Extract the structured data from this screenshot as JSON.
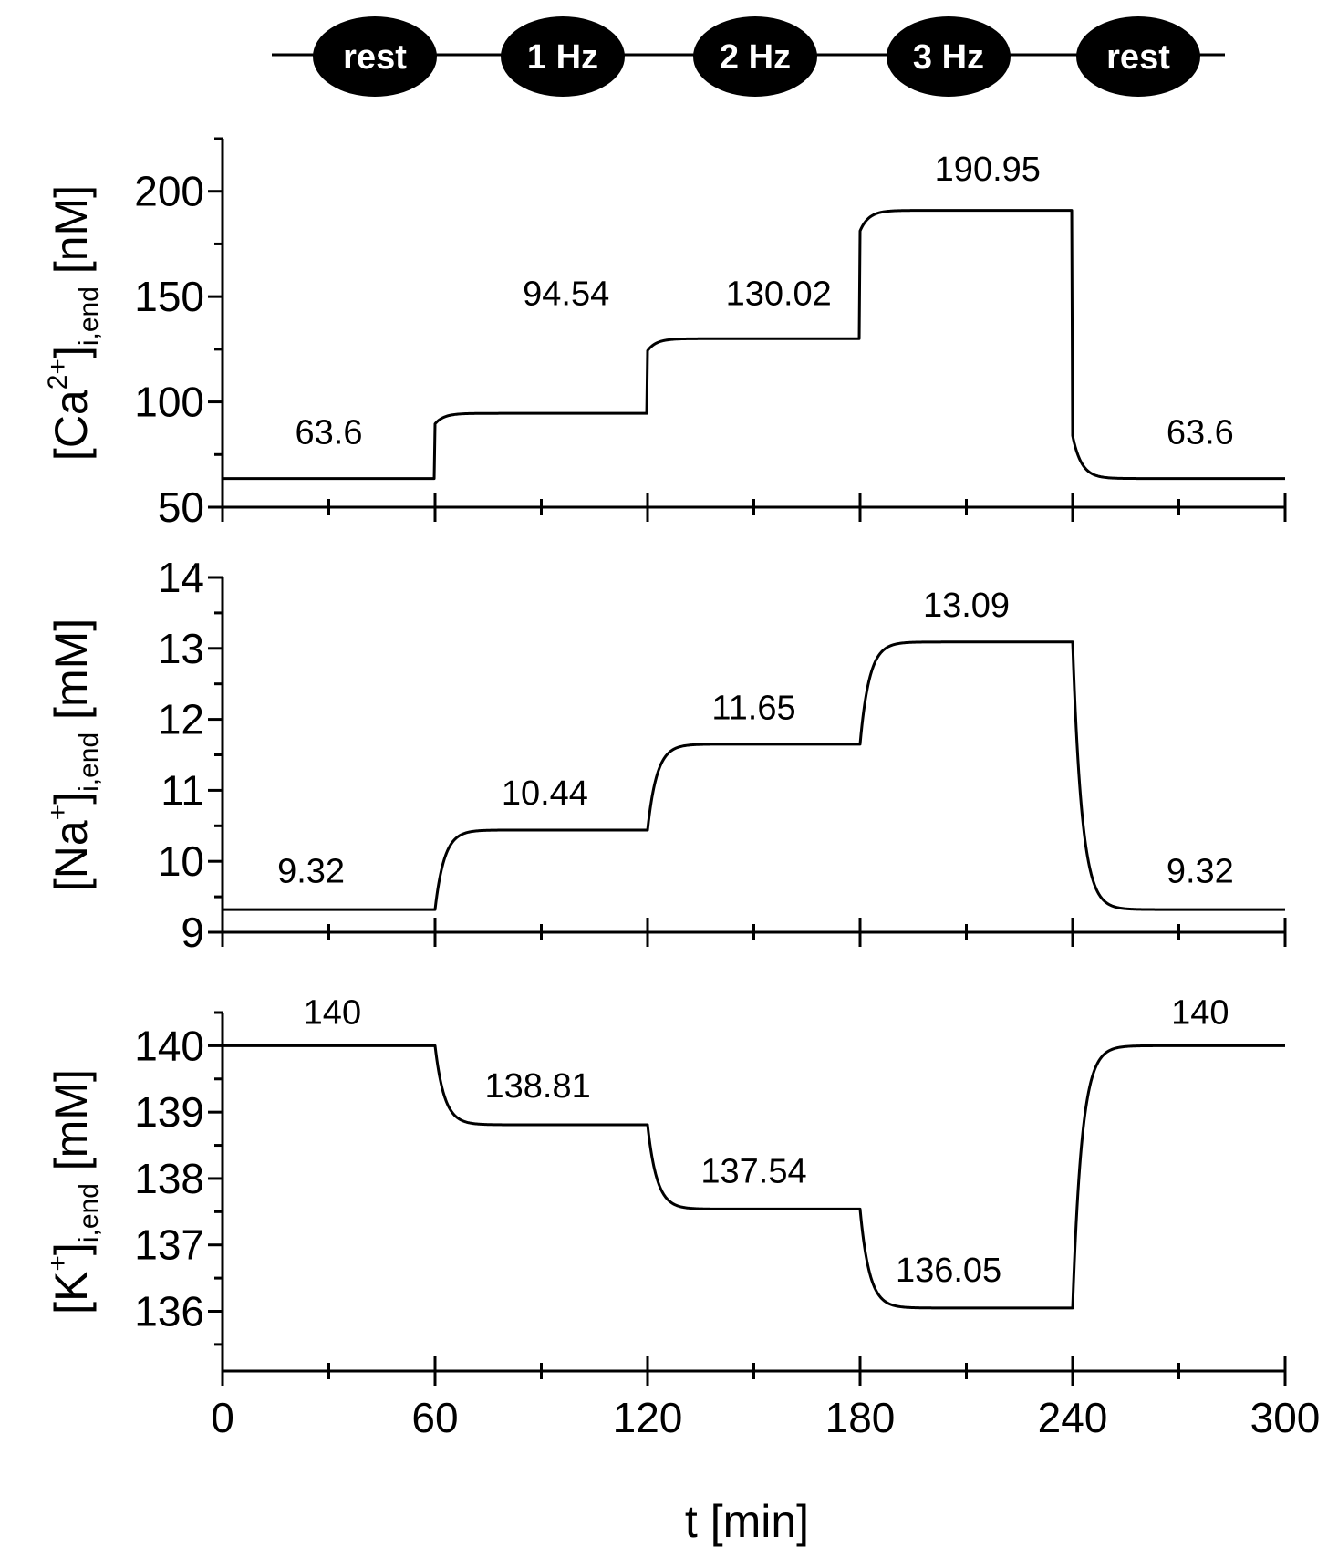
{
  "protocol": {
    "stages": [
      "rest",
      "1 Hz",
      "2 Hz",
      "3 Hz",
      "rest"
    ]
  },
  "x_axis": {
    "label": "t [min]",
    "range": [
      0,
      300
    ],
    "major_ticks": [
      0,
      60,
      120,
      180,
      240,
      300
    ],
    "tick_labels": [
      "0",
      "60",
      "120",
      "180",
      "240",
      "300"
    ],
    "minor_tick_step": 30
  },
  "chart_data": [
    {
      "type": "line",
      "ylabel": {
        "base": "[Ca",
        "sup": "2+",
        "mid": "]",
        "sub": "i,end",
        "unit": " [nM]"
      },
      "ylim": [
        50,
        225
      ],
      "yticks": [
        50,
        100,
        150,
        200
      ],
      "ytick_labels": [
        "50",
        "100",
        "150",
        "200"
      ],
      "yminor_step": 25,
      "x_breaks": [
        0,
        60,
        120,
        180,
        240,
        300
      ],
      "levels": [
        63.6,
        94.54,
        130.02,
        190.95,
        63.6
      ],
      "jump_fraction": 0.84,
      "time_constant": 2.5,
      "data_labels": [
        {
          "text": "63.6",
          "x": 30,
          "y": 80
        },
        {
          "text": "94.54",
          "x": 97,
          "y": 146
        },
        {
          "text": "130.02",
          "x": 157,
          "y": 146
        },
        {
          "text": "190.95",
          "x": 216,
          "y": 205
        },
        {
          "text": "63.6",
          "x": 276,
          "y": 80
        }
      ]
    },
    {
      "type": "line",
      "ylabel": {
        "base": "[Na",
        "sup": "+",
        "mid": "]",
        "sub": "i,end",
        "unit": " [mM]"
      },
      "ylim": [
        9,
        14
      ],
      "yticks": [
        9,
        10,
        11,
        12,
        13,
        14
      ],
      "ytick_labels": [
        "9",
        "10",
        "11",
        "12",
        "13",
        "14"
      ],
      "yminor_step": 0.5,
      "x_breaks": [
        0,
        60,
        120,
        180,
        240,
        300
      ],
      "levels": [
        9.32,
        10.44,
        11.65,
        13.09,
        9.32
      ],
      "jump_fraction": 0.0,
      "time_constant": 2.6,
      "data_labels": [
        {
          "text": "9.32",
          "x": 25,
          "y": 9.7
        },
        {
          "text": "10.44",
          "x": 91,
          "y": 10.8
        },
        {
          "text": "11.65",
          "x": 150,
          "y": 12.0
        },
        {
          "text": "13.09",
          "x": 210,
          "y": 13.45
        },
        {
          "text": "9.32",
          "x": 276,
          "y": 9.7
        }
      ]
    },
    {
      "type": "line",
      "ylabel": {
        "base": "[K",
        "sup": "+",
        "mid": "]",
        "sub": "i,end",
        "unit": " [mM]"
      },
      "ylim": [
        135.1,
        140.5
      ],
      "yticks": [
        136,
        137,
        138,
        139,
        140
      ],
      "ytick_labels": [
        "136",
        "137",
        "138",
        "139",
        "140"
      ],
      "yminor_step": 0.5,
      "x_breaks": [
        0,
        60,
        120,
        180,
        240,
        300
      ],
      "levels": [
        140,
        138.81,
        137.54,
        136.05,
        140
      ],
      "jump_fraction": 0.0,
      "time_constant": 2.6,
      "data_labels": [
        {
          "text": "140",
          "x": 31,
          "y": 140.33
        },
        {
          "text": "138.81",
          "x": 89,
          "y": 139.22
        },
        {
          "text": "137.54",
          "x": 150,
          "y": 137.94
        },
        {
          "text": "136.05",
          "x": 205,
          "y": 136.45
        },
        {
          "text": "140",
          "x": 276,
          "y": 140.33
        }
      ]
    }
  ]
}
